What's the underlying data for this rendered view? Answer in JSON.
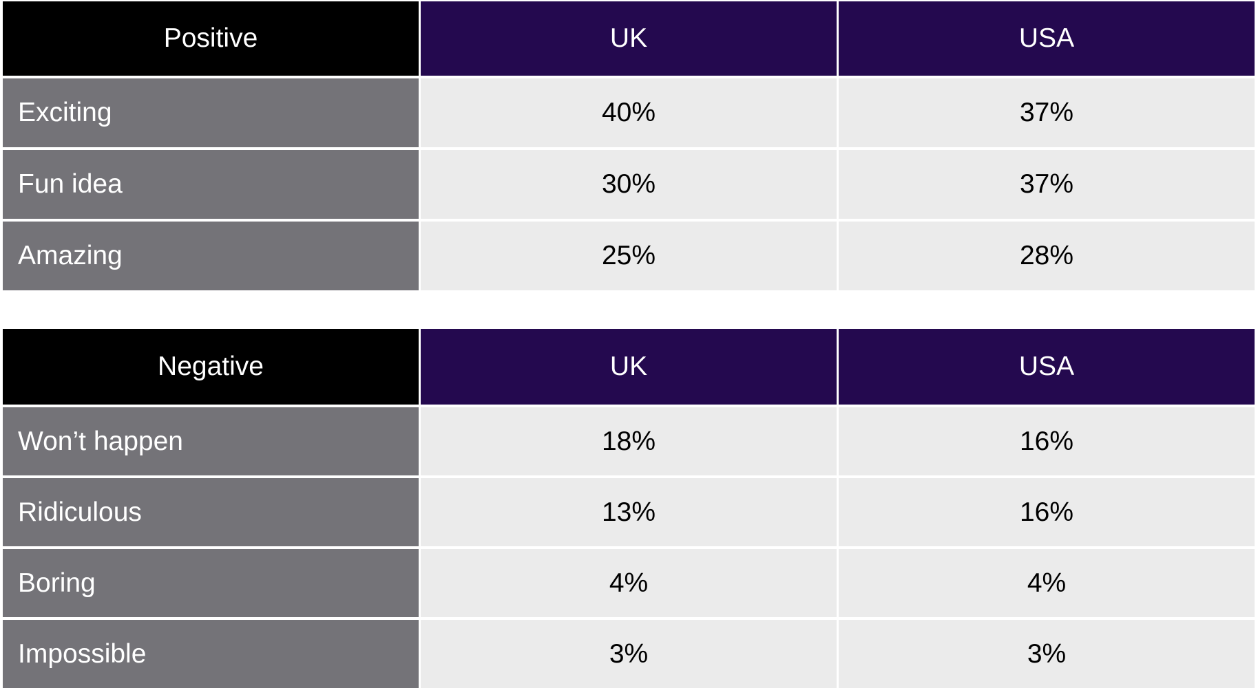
{
  "tables": [
    {
      "header": [
        "Positive",
        "UK",
        "USA"
      ],
      "rows": [
        [
          "Exciting",
          "40%",
          "37%"
        ],
        [
          "Fun idea",
          "30%",
          "37%"
        ],
        [
          "Amazing",
          "25%",
          "28%"
        ]
      ]
    },
    {
      "header": [
        "Negative",
        "UK",
        "USA"
      ],
      "rows": [
        [
          "Won’t happen",
          "18%",
          "16%"
        ],
        [
          "Ridiculous",
          "13%",
          "16%"
        ],
        [
          "Boring",
          "4%",
          "4%"
        ],
        [
          "Impossible",
          "3%",
          "3%"
        ]
      ]
    }
  ]
}
